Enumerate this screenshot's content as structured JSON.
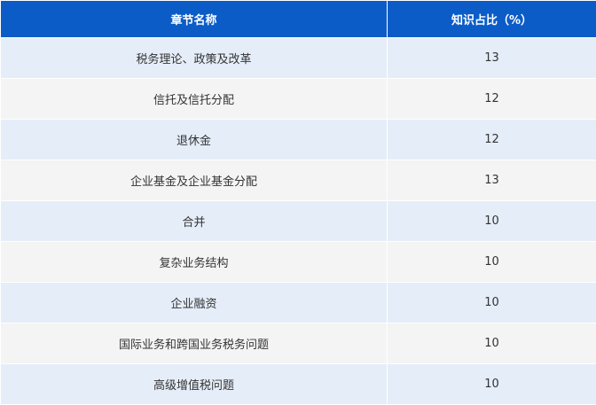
{
  "table": {
    "headers": [
      "章节名称",
      "知识占比（%）"
    ],
    "rows": [
      [
        "税务理论、政策及改革",
        "13"
      ],
      [
        "信托及信托分配",
        "12"
      ],
      [
        "退休金",
        "12"
      ],
      [
        "企业基金及企业基金分配",
        "13"
      ],
      [
        "合并",
        "10"
      ],
      [
        "复杂业务结构",
        "10"
      ],
      [
        "企业融资",
        "10"
      ],
      [
        "国际业务和跨国业务税务问题",
        "10"
      ],
      [
        "高级增值税问题",
        "10"
      ]
    ],
    "colors": {
      "header": "#0b5cc7",
      "row_odd": "#e5edf8",
      "row_even": "#f4f4f4"
    }
  }
}
